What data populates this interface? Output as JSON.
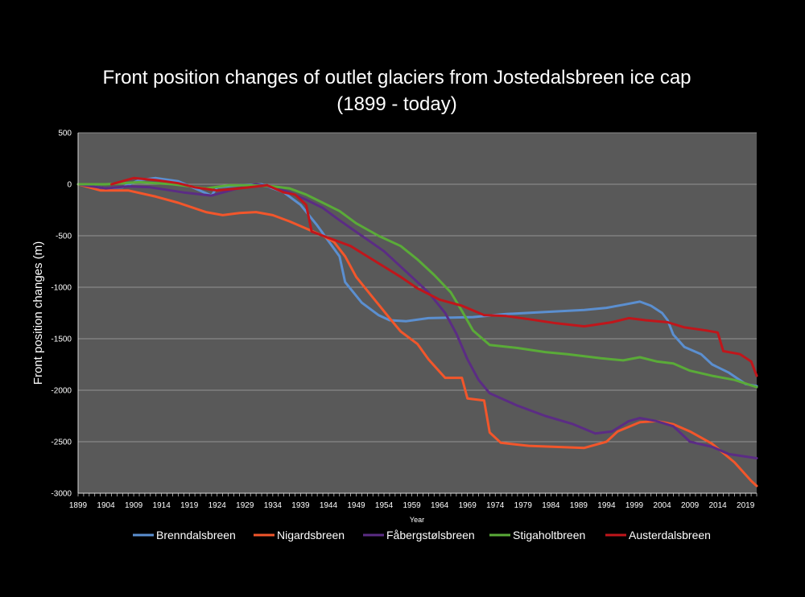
{
  "chart_data": {
    "type": "line",
    "title_line1": "Front position changes of outlet glaciers from Jostedalsbreen ice cap",
    "title_line2": "(1899 - today)",
    "xlabel": "Year",
    "ylabel": "Front position changes (m)",
    "xlim": [
      1899,
      2021
    ],
    "ylim": [
      -3000,
      500
    ],
    "yticks": [
      500,
      0,
      -500,
      -1000,
      -1500,
      -2000,
      -2500,
      -3000
    ],
    "xticks": [
      1899,
      1904,
      1909,
      1914,
      1919,
      1924,
      1929,
      1934,
      1939,
      1944,
      1949,
      1954,
      1959,
      1964,
      1969,
      1974,
      1979,
      1984,
      1989,
      1994,
      1999,
      2004,
      2009,
      2014,
      2019
    ],
    "colors": {
      "background": "#000000",
      "plot_area": "#595959",
      "gridline": "#a6a6a6",
      "axis": "#d9d9d9"
    },
    "series": [
      {
        "name": "Brenndalsbreen",
        "color": "#5b8fd0",
        "points": [
          [
            1899,
            0
          ],
          [
            1904,
            -40
          ],
          [
            1907,
            -30
          ],
          [
            1910,
            40
          ],
          [
            1913,
            60
          ],
          [
            1917,
            30
          ],
          [
            1920,
            -40
          ],
          [
            1923,
            -110
          ],
          [
            1924,
            -30
          ],
          [
            1928,
            -10
          ],
          [
            1932,
            0
          ],
          [
            1936,
            -80
          ],
          [
            1939,
            -200
          ],
          [
            1942,
            -400
          ],
          [
            1944,
            -550
          ],
          [
            1946,
            -700
          ],
          [
            1947,
            -950
          ],
          [
            1950,
            -1150
          ],
          [
            1953,
            -1270
          ],
          [
            1955,
            -1320
          ],
          [
            1958,
            -1330
          ],
          [
            1962,
            -1300
          ],
          [
            1970,
            -1290
          ],
          [
            1976,
            -1260
          ],
          [
            1983,
            -1240
          ],
          [
            1990,
            -1220
          ],
          [
            1994,
            -1200
          ],
          [
            1997,
            -1170
          ],
          [
            2000,
            -1140
          ],
          [
            2002,
            -1180
          ],
          [
            2004,
            -1250
          ],
          [
            2005,
            -1320
          ],
          [
            2006,
            -1460
          ],
          [
            2008,
            -1580
          ],
          [
            2011,
            -1650
          ],
          [
            2013,
            -1750
          ],
          [
            2016,
            -1830
          ],
          [
            2019,
            -1940
          ],
          [
            2021,
            -1960
          ]
        ]
      },
      {
        "name": "Nigardsbreen",
        "color": "#f2562b",
        "points": [
          [
            1899,
            0
          ],
          [
            1903,
            -60
          ],
          [
            1908,
            -60
          ],
          [
            1913,
            -120
          ],
          [
            1917,
            -180
          ],
          [
            1922,
            -270
          ],
          [
            1925,
            -300
          ],
          [
            1928,
            -280
          ],
          [
            1931,
            -270
          ],
          [
            1934,
            -300
          ],
          [
            1937,
            -360
          ],
          [
            1940,
            -430
          ],
          [
            1943,
            -500
          ],
          [
            1945,
            -560
          ],
          [
            1947,
            -700
          ],
          [
            1949,
            -900
          ],
          [
            1952,
            -1100
          ],
          [
            1955,
            -1300
          ],
          [
            1957,
            -1430
          ],
          [
            1960,
            -1550
          ],
          [
            1962,
            -1700
          ],
          [
            1964,
            -1820
          ],
          [
            1965,
            -1880
          ],
          [
            1968,
            -1880
          ],
          [
            1969,
            -2080
          ],
          [
            1972,
            -2100
          ],
          [
            1973,
            -2410
          ],
          [
            1975,
            -2510
          ],
          [
            1980,
            -2540
          ],
          [
            1990,
            -2560
          ],
          [
            1994,
            -2500
          ],
          [
            1996,
            -2400
          ],
          [
            2000,
            -2310
          ],
          [
            2003,
            -2300
          ],
          [
            2006,
            -2330
          ],
          [
            2009,
            -2400
          ],
          [
            2013,
            -2520
          ],
          [
            2017,
            -2700
          ],
          [
            2020,
            -2880
          ],
          [
            2021,
            -2930
          ]
        ]
      },
      {
        "name": "Fåbergstølsbreen",
        "color": "#5b2c84",
        "points": [
          [
            1899,
            0
          ],
          [
            1904,
            -40
          ],
          [
            1908,
            -20
          ],
          [
            1912,
            -30
          ],
          [
            1918,
            -80
          ],
          [
            1923,
            -110
          ],
          [
            1927,
            -50
          ],
          [
            1931,
            0
          ],
          [
            1934,
            -30
          ],
          [
            1937,
            -80
          ],
          [
            1940,
            -150
          ],
          [
            1943,
            -230
          ],
          [
            1946,
            -350
          ],
          [
            1950,
            -500
          ],
          [
            1954,
            -650
          ],
          [
            1958,
            -850
          ],
          [
            1962,
            -1050
          ],
          [
            1965,
            -1250
          ],
          [
            1967,
            -1450
          ],
          [
            1969,
            -1700
          ],
          [
            1971,
            -1900
          ],
          [
            1973,
            -2030
          ],
          [
            1978,
            -2150
          ],
          [
            1983,
            -2250
          ],
          [
            1988,
            -2330
          ],
          [
            1992,
            -2420
          ],
          [
            1995,
            -2400
          ],
          [
            1998,
            -2300
          ],
          [
            2000,
            -2270
          ],
          [
            2003,
            -2300
          ],
          [
            2006,
            -2350
          ],
          [
            2009,
            -2500
          ],
          [
            2013,
            -2550
          ],
          [
            2016,
            -2620
          ],
          [
            2021,
            -2660
          ]
        ]
      },
      {
        "name": "Stigaholtbreen",
        "color": "#5aab38",
        "points": [
          [
            1899,
            0
          ],
          [
            1904,
            0
          ],
          [
            1910,
            20
          ],
          [
            1916,
            0
          ],
          [
            1922,
            -40
          ],
          [
            1926,
            -10
          ],
          [
            1930,
            -10
          ],
          [
            1934,
            -20
          ],
          [
            1937,
            -40
          ],
          [
            1940,
            -100
          ],
          [
            1943,
            -180
          ],
          [
            1946,
            -260
          ],
          [
            1949,
            -380
          ],
          [
            1953,
            -500
          ],
          [
            1957,
            -600
          ],
          [
            1960,
            -730
          ],
          [
            1963,
            -880
          ],
          [
            1966,
            -1050
          ],
          [
            1968,
            -1230
          ],
          [
            1970,
            -1420
          ],
          [
            1973,
            -1560
          ],
          [
            1978,
            -1590
          ],
          [
            1983,
            -1630
          ],
          [
            1987,
            -1650
          ],
          [
            1993,
            -1690
          ],
          [
            1997,
            -1710
          ],
          [
            2000,
            -1680
          ],
          [
            2003,
            -1720
          ],
          [
            2006,
            -1740
          ],
          [
            2009,
            -1810
          ],
          [
            2013,
            -1860
          ],
          [
            2017,
            -1900
          ],
          [
            2021,
            -1970
          ]
        ]
      },
      {
        "name": "Austerdalsbreen",
        "color": "#c0161b",
        "points": [
          [
            1905,
            0
          ],
          [
            1909,
            60
          ],
          [
            1913,
            40
          ],
          [
            1917,
            10
          ],
          [
            1920,
            -30
          ],
          [
            1924,
            -60
          ],
          [
            1928,
            -40
          ],
          [
            1933,
            -10
          ],
          [
            1936,
            -80
          ],
          [
            1938,
            -100
          ],
          [
            1940,
            -200
          ],
          [
            1941,
            -460
          ],
          [
            1945,
            -540
          ],
          [
            1948,
            -600
          ],
          [
            1951,
            -700
          ],
          [
            1954,
            -800
          ],
          [
            1957,
            -900
          ],
          [
            1960,
            -1010
          ],
          [
            1964,
            -1120
          ],
          [
            1968,
            -1180
          ],
          [
            1972,
            -1270
          ],
          [
            1976,
            -1280
          ],
          [
            1980,
            -1310
          ],
          [
            1985,
            -1350
          ],
          [
            1990,
            -1380
          ],
          [
            1995,
            -1340
          ],
          [
            1998,
            -1300
          ],
          [
            2001,
            -1320
          ],
          [
            2005,
            -1340
          ],
          [
            2008,
            -1390
          ],
          [
            2012,
            -1420
          ],
          [
            2014,
            -1440
          ],
          [
            2015,
            -1620
          ],
          [
            2018,
            -1650
          ],
          [
            2020,
            -1720
          ],
          [
            2021,
            -1860
          ]
        ]
      }
    ]
  }
}
